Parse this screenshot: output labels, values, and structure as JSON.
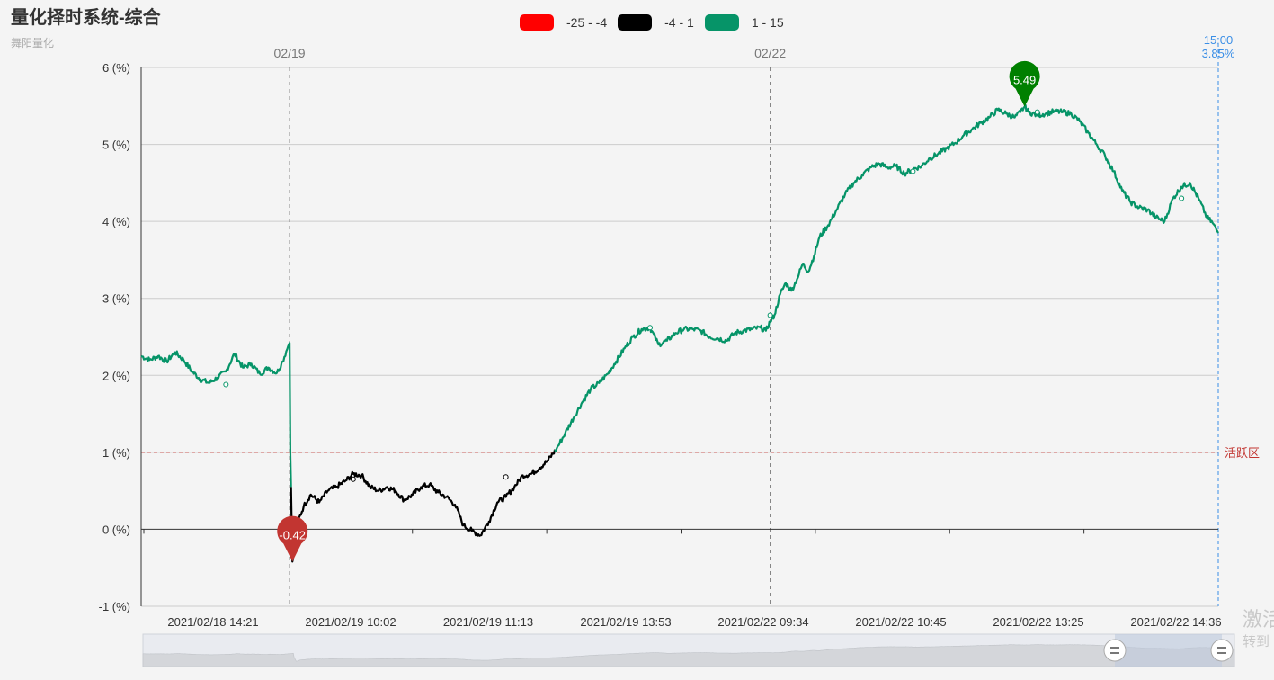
{
  "title": "量化择时系统-综合",
  "subtitle": "舞阳量化",
  "legend": [
    {
      "label": "-25 - -4",
      "color": "#ff0000"
    },
    {
      "label": "-4 - 1",
      "color": "#000000"
    },
    {
      "label": "1 - 15",
      "color": "#069468"
    }
  ],
  "watermark": {
    "line1": "激活",
    "line2": "转到"
  },
  "chart_data": {
    "type": "line",
    "ylim": [
      -1,
      6
    ],
    "y_ticks": [
      "-1 (%)",
      "0 (%)",
      "1 (%)",
      "2 (%)",
      "3 (%)",
      "4 (%)",
      "5 (%)",
      "6 (%)"
    ],
    "x_tick_labels": [
      "2021/02/18 14:21",
      "2021/02/19 10:02",
      "2021/02/19 11:13",
      "2021/02/19 13:53",
      "2021/02/22 09:34",
      "2021/02/22 10:45",
      "2021/02/22 13:25",
      "2021/02/22 14:36"
    ],
    "date_markers": [
      {
        "label": "02/19",
        "x_index": 105
      },
      {
        "label": "02/22",
        "x_index": 445
      }
    ],
    "active_zone": {
      "value": 1,
      "label": "活跃区",
      "color": "#c23531"
    },
    "cursor": {
      "time": "15:00",
      "value": "3.85%",
      "color": "#3a8ee6"
    },
    "pieces": [
      {
        "min": -25,
        "max": -4,
        "color": "#ff0000"
      },
      {
        "min": -4,
        "max": 1,
        "color": "#000000"
      },
      {
        "min": 1,
        "max": 15,
        "color": "#069468"
      }
    ],
    "markers": [
      {
        "type": "min",
        "value": -0.42,
        "label": "-0.42",
        "color": "#c23531",
        "x_index": 107
      },
      {
        "type": "max",
        "value": 5.49,
        "label": "5.49",
        "color": "#008000",
        "x_index": 625
      }
    ],
    "anchors": [
      [
        0,
        2.25
      ],
      [
        6,
        2.2
      ],
      [
        12,
        2.25
      ],
      [
        18,
        2.18
      ],
      [
        24,
        2.3
      ],
      [
        30,
        2.2
      ],
      [
        36,
        2.05
      ],
      [
        42,
        1.95
      ],
      [
        48,
        1.9
      ],
      [
        54,
        1.97
      ],
      [
        60,
        2.05
      ],
      [
        66,
        2.28
      ],
      [
        72,
        2.1
      ],
      [
        78,
        2.15
      ],
      [
        84,
        2.02
      ],
      [
        90,
        2.1
      ],
      [
        96,
        2.03
      ],
      [
        100,
        2.18
      ],
      [
        104,
        2.38
      ],
      [
        105,
        2.42
      ],
      [
        105.5,
        1.0
      ],
      [
        106,
        0.55
      ],
      [
        107,
        -0.42
      ],
      [
        110,
        0.05
      ],
      [
        115,
        0.3
      ],
      [
        120,
        0.45
      ],
      [
        126,
        0.35
      ],
      [
        132,
        0.5
      ],
      [
        138,
        0.55
      ],
      [
        144,
        0.62
      ],
      [
        150,
        0.72
      ],
      [
        156,
        0.7
      ],
      [
        162,
        0.55
      ],
      [
        168,
        0.5
      ],
      [
        174,
        0.55
      ],
      [
        180,
        0.5
      ],
      [
        186,
        0.38
      ],
      [
        192,
        0.45
      ],
      [
        198,
        0.55
      ],
      [
        204,
        0.58
      ],
      [
        210,
        0.48
      ],
      [
        216,
        0.42
      ],
      [
        222,
        0.32
      ],
      [
        228,
        0.05
      ],
      [
        234,
        -0.02
      ],
      [
        240,
        -0.08
      ],
      [
        246,
        0.1
      ],
      [
        252,
        0.35
      ],
      [
        258,
        0.42
      ],
      [
        264,
        0.55
      ],
      [
        270,
        0.7
      ],
      [
        276,
        0.72
      ],
      [
        282,
        0.8
      ],
      [
        288,
        0.9
      ],
      [
        294,
        1.05
      ],
      [
        300,
        1.25
      ],
      [
        306,
        1.45
      ],
      [
        312,
        1.65
      ],
      [
        318,
        1.82
      ],
      [
        324,
        1.9
      ],
      [
        330,
        2.02
      ],
      [
        336,
        2.18
      ],
      [
        342,
        2.35
      ],
      [
        348,
        2.5
      ],
      [
        354,
        2.6
      ],
      [
        360,
        2.62
      ],
      [
        366,
        2.4
      ],
      [
        372,
        2.45
      ],
      [
        378,
        2.55
      ],
      [
        384,
        2.6
      ],
      [
        390,
        2.6
      ],
      [
        396,
        2.58
      ],
      [
        402,
        2.5
      ],
      [
        408,
        2.48
      ],
      [
        414,
        2.45
      ],
      [
        420,
        2.55
      ],
      [
        426,
        2.58
      ],
      [
        432,
        2.6
      ],
      [
        438,
        2.62
      ],
      [
        442,
        2.58
      ],
      [
        445,
        2.7
      ],
      [
        448,
        2.78
      ],
      [
        452,
        3.05
      ],
      [
        456,
        3.2
      ],
      [
        460,
        3.1
      ],
      [
        464,
        3.25
      ],
      [
        468,
        3.45
      ],
      [
        472,
        3.35
      ],
      [
        476,
        3.55
      ],
      [
        480,
        3.8
      ],
      [
        486,
        3.95
      ],
      [
        492,
        4.15
      ],
      [
        498,
        4.35
      ],
      [
        504,
        4.5
      ],
      [
        510,
        4.6
      ],
      [
        516,
        4.7
      ],
      [
        522,
        4.75
      ],
      [
        528,
        4.7
      ],
      [
        534,
        4.72
      ],
      [
        540,
        4.62
      ],
      [
        546,
        4.68
      ],
      [
        552,
        4.72
      ],
      [
        558,
        4.82
      ],
      [
        564,
        4.88
      ],
      [
        570,
        4.95
      ],
      [
        576,
        5.02
      ],
      [
        582,
        5.12
      ],
      [
        588,
        5.2
      ],
      [
        594,
        5.28
      ],
      [
        600,
        5.35
      ],
      [
        606,
        5.45
      ],
      [
        612,
        5.4
      ],
      [
        618,
        5.35
      ],
      [
        622,
        5.42
      ],
      [
        625,
        5.49
      ],
      [
        628,
        5.42
      ],
      [
        634,
        5.38
      ],
      [
        640,
        5.4
      ],
      [
        646,
        5.43
      ],
      [
        652,
        5.42
      ],
      [
        658,
        5.4
      ],
      [
        664,
        5.3
      ],
      [
        670,
        5.15
      ],
      [
        676,
        5.0
      ],
      [
        682,
        4.85
      ],
      [
        688,
        4.65
      ],
      [
        694,
        4.4
      ],
      [
        700,
        4.25
      ],
      [
        706,
        4.18
      ],
      [
        712,
        4.15
      ],
      [
        718,
        4.05
      ],
      [
        724,
        4.0
      ],
      [
        730,
        4.3
      ],
      [
        736,
        4.45
      ],
      [
        742,
        4.5
      ],
      [
        748,
        4.3
      ],
      [
        754,
        4.05
      ],
      [
        758,
        3.98
      ],
      [
        762,
        3.85
      ]
    ]
  }
}
